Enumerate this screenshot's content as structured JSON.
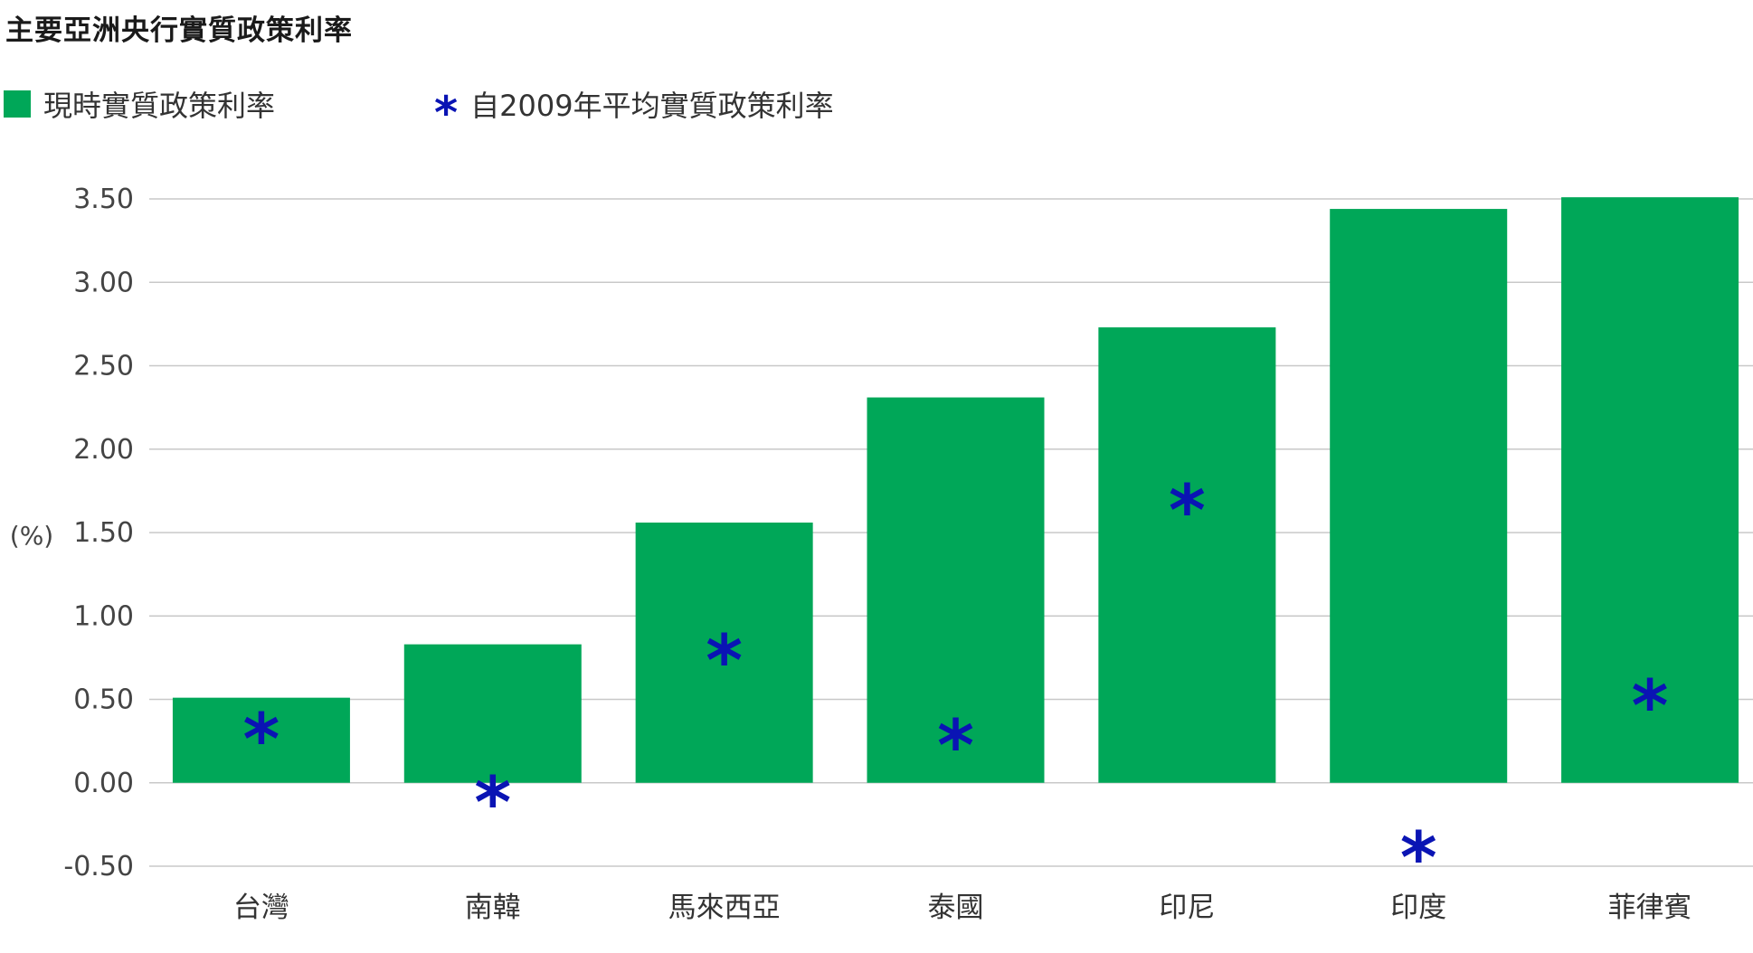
{
  "chart_data": {
    "type": "bar",
    "title": "主要亞洲央行實質政策利率",
    "ylabel": "(%)",
    "categories": [
      "台灣",
      "南韓",
      "馬來西亞",
      "泰國",
      "印尼",
      "印度",
      "菲律賓"
    ],
    "series": [
      {
        "name": "現時實質政策利率",
        "type": "bar",
        "values": [
          0.51,
          0.83,
          1.56,
          2.31,
          2.73,
          3.44,
          3.51
        ]
      },
      {
        "name": "自2009年平均實質政策利率",
        "type": "marker",
        "values": [
          0.33,
          -0.05,
          0.8,
          0.29,
          1.7,
          -0.38,
          0.53
        ]
      }
    ],
    "yticks": [
      "3.50",
      "3.00",
      "2.50",
      "2.00",
      "1.50",
      "1.00",
      "0.50",
      "0.00",
      "-0.50"
    ],
    "ylim": [
      -0.5,
      3.5
    ],
    "grid": true,
    "legend_position": "top-left"
  },
  "colors": {
    "bar": "#00a758",
    "marker": "#0a14b4",
    "grid": "#c8c8c8"
  },
  "marker_glyph": "*"
}
